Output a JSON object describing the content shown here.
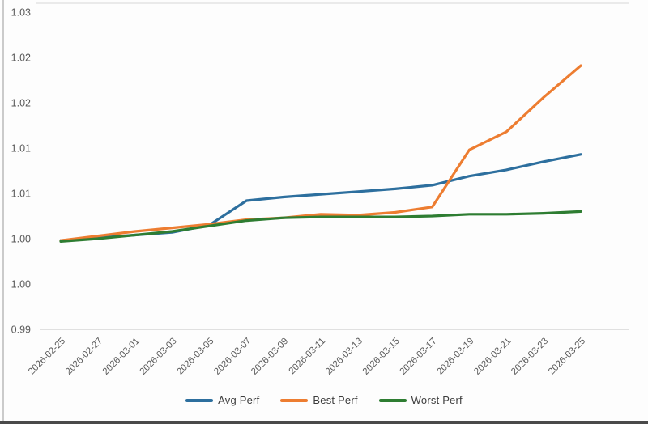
{
  "page": {
    "background": "#fdfdfd"
  },
  "chart_data": {
    "type": "line",
    "title": "",
    "xlabel": "",
    "ylabel": "",
    "categories": [
      "2026-02-25",
      "2026-02-27",
      "2026-03-01",
      "2026-03-03",
      "2026-03-05",
      "2026-03-07",
      "2026-03-09",
      "2026-03-11",
      "2026-03-13",
      "2026-03-15",
      "2026-03-17",
      "2026-03-19",
      "2026-03-21",
      "2026-03-23",
      "2026-03-25"
    ],
    "series": [
      {
        "name": "Avg Perf",
        "key": "avg-perf",
        "color": "#2d6f9e",
        "values": [
          0.9998,
          1.0001,
          1.0004,
          1.0007,
          1.0015,
          1.0042,
          1.0046,
          1.0049,
          1.0052,
          1.0055,
          1.0059,
          1.0069,
          1.0076,
          1.0085,
          1.0093
        ]
      },
      {
        "name": "Best Perf",
        "key": "best-perf",
        "color": "#ed7d31",
        "values": [
          0.9998,
          1.0003,
          1.0008,
          1.0012,
          1.0016,
          1.0021,
          1.0023,
          1.0027,
          1.0026,
          1.0029,
          1.0035,
          1.0098,
          1.0118,
          1.0156,
          1.0191
        ]
      },
      {
        "name": "Worst Perf",
        "key": "worst-perf",
        "color": "#2e7d32",
        "values": [
          0.9997,
          1.0,
          1.0004,
          1.0008,
          1.0014,
          1.002,
          1.0023,
          1.0024,
          1.0024,
          1.0024,
          1.0025,
          1.0027,
          1.0027,
          1.0028,
          1.003
        ]
      }
    ],
    "ylim": [
      0.99,
      1.026
    ],
    "y_tick_step": 0.005,
    "grid": "top border and bottom axis line only, no interior gridlines",
    "legend_position": "bottom"
  },
  "axis": {
    "y_tick_labels": [
      "0.99",
      "1.00",
      "1.00",
      "1.01",
      "1.01",
      "1.02",
      "1.02",
      "1.03"
    ],
    "y_tick_values": [
      0.99,
      0.995,
      1.0,
      1.005,
      1.01,
      1.015,
      1.02,
      1.025
    ],
    "label_color": "#595959",
    "top_border_color": "#e4e4e4",
    "axis_line_color": "#d6d6d6"
  },
  "decor": {
    "bottom_bar_color": "#4a4a4a",
    "left_edge_line_color": "#cbcbcb"
  }
}
